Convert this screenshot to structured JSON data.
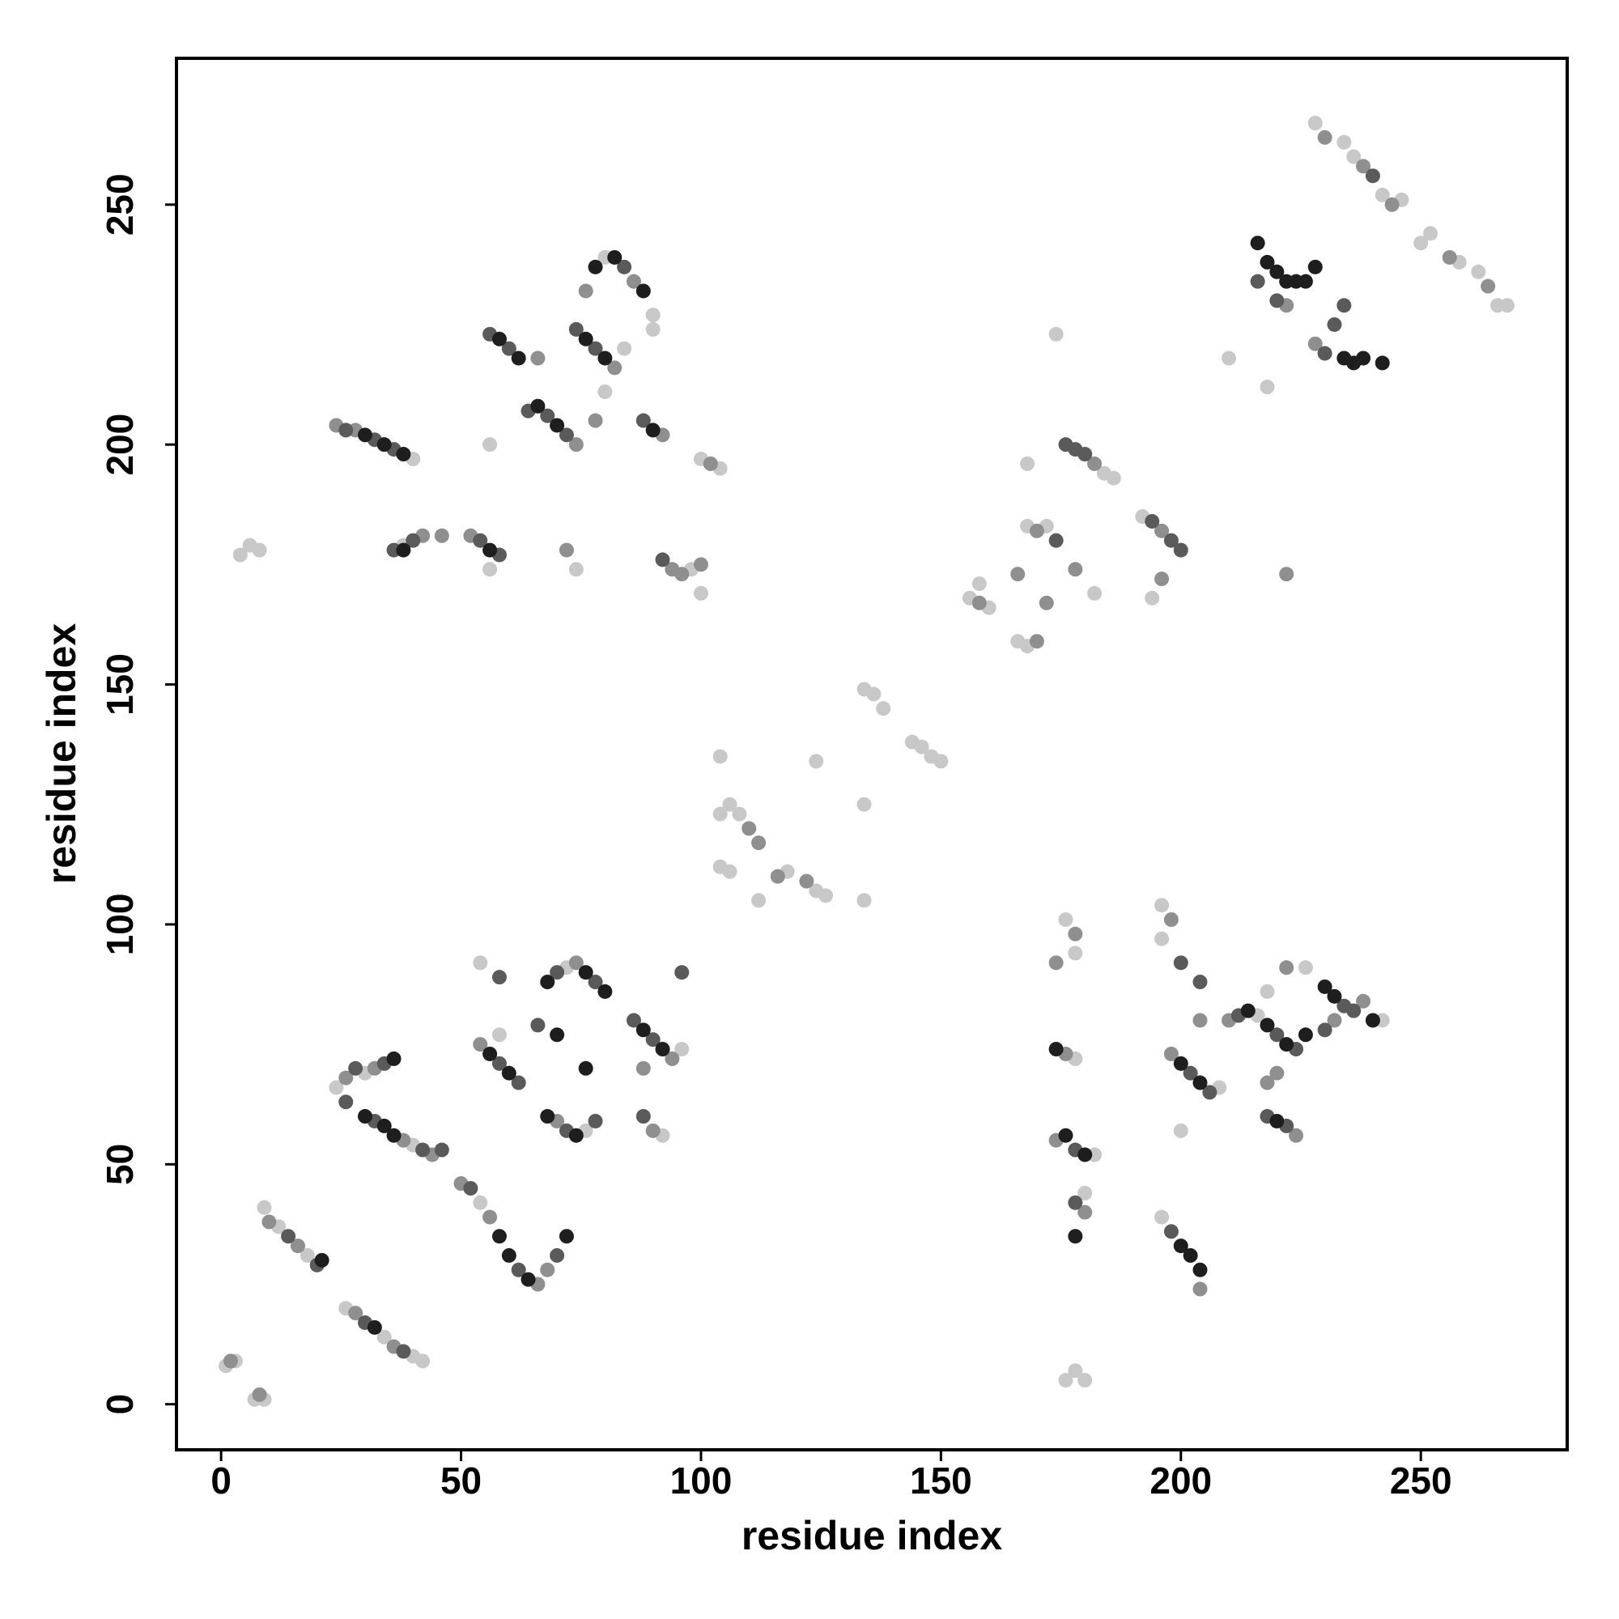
{
  "chart_data": {
    "type": "scatter",
    "xlabel": "residue index",
    "ylabel": "residue index",
    "xlim": [
      -9.3,
      280.5
    ],
    "ylim": [
      -9.5,
      280.5
    ],
    "xticks": [
      0,
      50,
      100,
      150,
      200,
      250
    ],
    "yticks": [
      0,
      50,
      100,
      150,
      200,
      250
    ],
    "series": [
      {
        "color": "#c8c8c8",
        "x": [
          1,
          3,
          7,
          9,
          9,
          12,
          18,
          26,
          34,
          40,
          42,
          24,
          30,
          40,
          54,
          58,
          54,
          72,
          76,
          96,
          92,
          4,
          6,
          8,
          40,
          38,
          56,
          74,
          98,
          100,
          56,
          84,
          80,
          80,
          90,
          90,
          100,
          104,
          104,
          104,
          106,
          108,
          104,
          106,
          112,
          118,
          124,
          126,
          124,
          134,
          134,
          134,
          136,
          138,
          144,
          146,
          148,
          150,
          156,
          158,
          160,
          166,
          168,
          168,
          168,
          172,
          184,
          186,
          182,
          192,
          194,
          174,
          210,
          218,
          228,
          234,
          236,
          242,
          246,
          250,
          252,
          258,
          262,
          266,
          268,
          176,
          178,
          178,
          182,
          180,
          176,
          178,
          180,
          196,
          196,
          200,
          226,
          218,
          242,
          196,
          208,
          216
        ],
        "values": [
          8,
          9,
          1,
          1,
          41,
          37,
          31,
          20,
          14,
          10,
          9,
          66,
          69,
          54,
          42,
          77,
          92,
          91,
          57,
          74,
          56,
          177,
          179,
          178,
          197,
          179,
          174,
          174,
          174,
          169,
          200,
          220,
          211,
          239,
          227,
          224,
          197,
          195,
          135,
          123,
          125,
          123,
          112,
          111,
          105,
          111,
          107,
          106,
          134,
          125,
          105,
          149,
          148,
          145,
          138,
          137,
          135,
          134,
          168,
          171,
          166,
          159,
          158,
          196,
          183,
          183,
          194,
          193,
          169,
          185,
          168,
          223,
          218,
          212,
          267,
          263,
          260,
          252,
          251,
          242,
          244,
          238,
          236,
          229,
          229,
          101,
          94,
          72,
          52,
          44,
          5,
          7,
          5,
          104,
          97,
          57,
          91,
          86,
          80,
          39,
          66,
          81
        ]
      },
      {
        "color": "#8f8f8f",
        "x": [
          2,
          8,
          10,
          16,
          28,
          36,
          26,
          32,
          38,
          44,
          50,
          56,
          66,
          68,
          54,
          70,
          74,
          88,
          94,
          90,
          24,
          28,
          42,
          46,
          52,
          72,
          94,
          96,
          100,
          102,
          74,
          66,
          78,
          82,
          86,
          76,
          92,
          110,
          112,
          116,
          122,
          158,
          170,
          166,
          172,
          170,
          182,
          178,
          196,
          196,
          222,
          222,
          228,
          230,
          238,
          244,
          256,
          264,
          178,
          174,
          176,
          174,
          180,
          198,
          204,
          198,
          204,
          210,
          218,
          220,
          222,
          238,
          232,
          224
        ],
        "values": [
          9,
          2,
          38,
          33,
          19,
          12,
          68,
          70,
          55,
          52,
          46,
          39,
          25,
          28,
          75,
          59,
          92,
          70,
          72,
          57,
          204,
          203,
          181,
          181,
          181,
          178,
          174,
          173,
          175,
          196,
          200,
          218,
          205,
          216,
          234,
          232,
          202,
          120,
          117,
          110,
          109,
          167,
          159,
          173,
          167,
          182,
          196,
          174,
          182,
          172,
          173,
          229,
          221,
          264,
          258,
          250,
          239,
          233,
          98,
          92,
          73,
          55,
          40,
          101,
          24,
          73,
          80,
          80,
          67,
          69,
          91,
          84,
          80,
          56
        ]
      },
      {
        "color": "#5a5a5a",
        "x": [
          14,
          20,
          30,
          38,
          28,
          34,
          26,
          32,
          42,
          46,
          52,
          62,
          70,
          58,
          62,
          66,
          72,
          78,
          70,
          78,
          86,
          90,
          96,
          58,
          26,
          32,
          36,
          36,
          40,
          54,
          58,
          92,
          56,
          60,
          64,
          68,
          72,
          74,
          78,
          84,
          88,
          176,
          180,
          174,
          178,
          194,
          198,
          200,
          216,
          220,
          230,
          234,
          232,
          240,
          178,
          178,
          198,
          202,
          206,
          200,
          204,
          212,
          220,
          224,
          218,
          222,
          234,
          236,
          230,
          88
        ],
        "values": [
          35,
          29,
          17,
          11,
          70,
          71,
          63,
          59,
          53,
          53,
          45,
          28,
          31,
          71,
          67,
          79,
          57,
          59,
          90,
          88,
          80,
          76,
          90,
          89,
          203,
          201,
          199,
          178,
          180,
          180,
          177,
          176,
          223,
          220,
          207,
          206,
          202,
          224,
          220,
          237,
          205,
          200,
          198,
          180,
          199,
          184,
          180,
          178,
          234,
          230,
          219,
          229,
          225,
          256,
          53,
          42,
          36,
          69,
          65,
          92,
          88,
          81,
          77,
          74,
          60,
          58,
          83,
          82,
          78,
          60
        ]
      },
      {
        "color": "#1e1e1e",
        "x": [
          21,
          32,
          36,
          30,
          34,
          36,
          58,
          60,
          64,
          72,
          56,
          60,
          68,
          74,
          68,
          76,
          80,
          88,
          92,
          70,
          76,
          30,
          34,
          38,
          38,
          56,
          58,
          62,
          66,
          70,
          76,
          80,
          78,
          82,
          88,
          90,
          216,
          218,
          220,
          222,
          224,
          226,
          228,
          234,
          236,
          238,
          242,
          174,
          176,
          180,
          178,
          200,
          202,
          204,
          200,
          204,
          214,
          218,
          222,
          226,
          220,
          230,
          232,
          240
        ],
        "values": [
          30,
          16,
          72,
          60,
          58,
          56,
          35,
          31,
          26,
          35,
          73,
          69,
          60,
          56,
          88,
          90,
          86,
          78,
          74,
          77,
          70,
          202,
          200,
          198,
          178,
          178,
          222,
          218,
          208,
          204,
          222,
          218,
          237,
          239,
          232,
          203,
          242,
          238,
          236,
          234,
          234,
          234,
          237,
          218,
          217,
          218,
          217,
          74,
          56,
          52,
          35,
          33,
          31,
          28,
          71,
          67,
          82,
          79,
          75,
          77,
          59,
          87,
          85,
          80
        ]
      }
    ]
  }
}
